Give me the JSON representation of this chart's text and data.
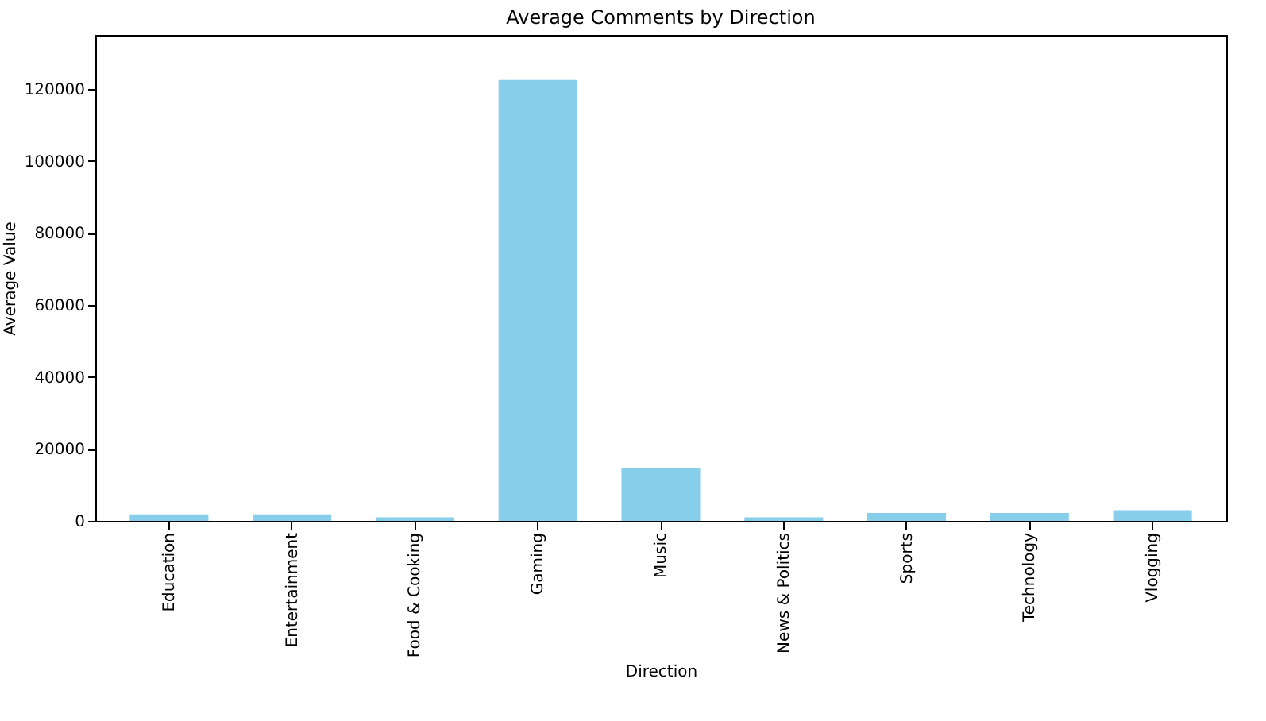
{
  "chart_data": {
    "type": "bar",
    "title": "Average Comments by Direction",
    "xlabel": "Direction",
    "ylabel": "Average Value",
    "categories": [
      "Education",
      "Entertainment",
      "Food & Cooking",
      "Gaming",
      "Music",
      "News & Politics",
      "Sports",
      "Technology",
      "Vlogging"
    ],
    "values": [
      1800,
      1800,
      1000,
      122500,
      14800,
      1000,
      2200,
      2200,
      3000
    ],
    "color": "#87ceeb",
    "ylim": [
      0,
      135000
    ],
    "yticks": [
      0,
      20000,
      40000,
      60000,
      80000,
      100000,
      120000
    ],
    "grid": false
  }
}
